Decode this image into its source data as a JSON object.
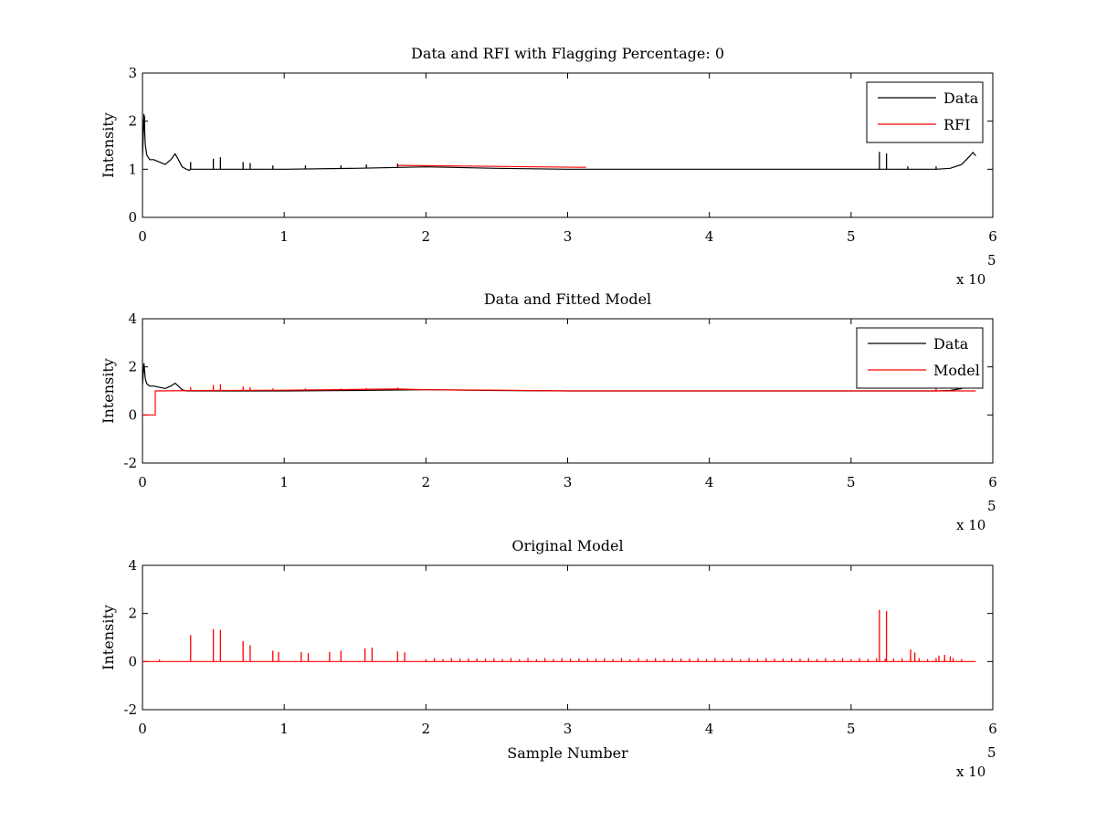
{
  "figure": {
    "background": "#ffffff"
  },
  "chart_data": [
    {
      "type": "line",
      "title": "Data and RFI with Flagging Percentage: 0",
      "xlabel": "",
      "ylabel": "Intensity",
      "xlim": [
        0,
        600000
      ],
      "ylim": [
        0,
        3
      ],
      "x_ticks": [
        0,
        100000,
        200000,
        300000,
        400000,
        500000,
        600000
      ],
      "x_tick_labels": [
        "0",
        "1",
        "2",
        "3",
        "4",
        "5",
        "6"
      ],
      "y_ticks": [
        0,
        1,
        2,
        3
      ],
      "y_tick_labels": [
        "0",
        "1",
        "2",
        "3"
      ],
      "x_multiplier": {
        "text": "x 10",
        "exponent": "5"
      },
      "grid": false,
      "legend": "top-right",
      "series": [
        {
          "name": "Data",
          "color": "#000000",
          "x": [
            0,
            1000,
            2000,
            3000,
            5000,
            8000,
            12000,
            16000,
            20000,
            23000,
            25000,
            28000,
            31000,
            33000,
            34000,
            36000,
            40000,
            50000,
            60000,
            80000,
            100000,
            150000,
            200000,
            250000,
            300000,
            350000,
            400000,
            450000,
            500000,
            540000,
            560000,
            570000,
            578000,
            583000,
            586000,
            588000
          ],
          "y": [
            1.25,
            2.15,
            1.5,
            1.3,
            1.2,
            1.2,
            1.15,
            1.1,
            1.2,
            1.32,
            1.22,
            1.05,
            1.0,
            0.98,
            1.0,
            1.0,
            1.0,
            1.0,
            1.0,
            1.0,
            1.0,
            1.02,
            1.05,
            1.02,
            1.0,
            1.0,
            1.0,
            1.0,
            1.0,
            1.0,
            1.0,
            1.02,
            1.1,
            1.25,
            1.35,
            1.28
          ],
          "spikes": [
            {
              "x": 1500,
              "y": 2.1
            },
            {
              "x": 34000,
              "y": 1.15
            },
            {
              "x": 50000,
              "y": 1.22
            },
            {
              "x": 55000,
              "y": 1.25
            },
            {
              "x": 71000,
              "y": 1.15
            },
            {
              "x": 76000,
              "y": 1.13
            },
            {
              "x": 92000,
              "y": 1.08
            },
            {
              "x": 115000,
              "y": 1.08
            },
            {
              "x": 140000,
              "y": 1.08
            },
            {
              "x": 158000,
              "y": 1.1
            },
            {
              "x": 180000,
              "y": 1.12
            },
            {
              "x": 520000,
              "y": 1.36
            },
            {
              "x": 525000,
              "y": 1.33
            },
            {
              "x": 540000,
              "y": 1.06
            },
            {
              "x": 560000,
              "y": 1.06
            }
          ]
        },
        {
          "name": "RFI",
          "color": "#ff0000",
          "x": [
            180000,
            183000,
            310000,
            313000
          ],
          "y": [
            1.08,
            1.08,
            1.04,
            1.04
          ]
        }
      ]
    },
    {
      "type": "line",
      "title": "Data and Fitted Model",
      "xlabel": "",
      "ylabel": "Intensity",
      "xlim": [
        0,
        600000
      ],
      "ylim": [
        -2,
        4
      ],
      "x_ticks": [
        0,
        100000,
        200000,
        300000,
        400000,
        500000,
        600000
      ],
      "x_tick_labels": [
        "0",
        "1",
        "2",
        "3",
        "4",
        "5",
        "6"
      ],
      "y_ticks": [
        -2,
        0,
        2,
        4
      ],
      "y_tick_labels": [
        "-2",
        "0",
        "2",
        "4"
      ],
      "x_multiplier": {
        "text": "x 10",
        "exponent": "5"
      },
      "grid": false,
      "legend": "top-right",
      "series": [
        {
          "name": "Data",
          "color": "#000000",
          "x": [
            0,
            1000,
            2000,
            3000,
            5000,
            8000,
            12000,
            16000,
            20000,
            23000,
            25000,
            28000,
            31000,
            34000,
            40000,
            60000,
            100000,
            150000,
            200000,
            250000,
            300000,
            350000,
            400000,
            450000,
            500000,
            540000,
            560000,
            570000,
            578000,
            583000,
            586000,
            588000
          ],
          "y": [
            1.25,
            2.15,
            1.5,
            1.3,
            1.2,
            1.2,
            1.15,
            1.1,
            1.2,
            1.32,
            1.22,
            1.05,
            1.0,
            1.0,
            1.0,
            1.0,
            1.0,
            1.02,
            1.05,
            1.02,
            1.0,
            1.0,
            1.0,
            1.0,
            1.0,
            1.0,
            1.0,
            1.02,
            1.1,
            1.25,
            1.35,
            1.28
          ]
        },
        {
          "name": "Model",
          "color": "#ff0000",
          "x": [
            0,
            9000,
            9000,
            50000,
            100000,
            150000,
            180000,
            200000,
            250000,
            300000,
            350000,
            400000,
            450000,
            500000,
            550000,
            588000
          ],
          "y": [
            0,
            0,
            1.0,
            1.02,
            1.03,
            1.06,
            1.08,
            1.05,
            1.03,
            1.0,
            1.0,
            1.0,
            1.0,
            1.0,
            1.0,
            1.0
          ],
          "spikes": [
            {
              "x": 34000,
              "y": 1.15
            },
            {
              "x": 50000,
              "y": 1.25
            },
            {
              "x": 55000,
              "y": 1.28
            },
            {
              "x": 71000,
              "y": 1.18
            },
            {
              "x": 76000,
              "y": 1.15
            },
            {
              "x": 92000,
              "y": 1.1
            },
            {
              "x": 115000,
              "y": 1.1
            },
            {
              "x": 140000,
              "y": 1.1
            },
            {
              "x": 158000,
              "y": 1.12
            },
            {
              "x": 180000,
              "y": 1.14
            },
            {
              "x": 560000,
              "y": 1.1
            }
          ]
        }
      ]
    },
    {
      "type": "line",
      "title": "Original Model",
      "xlabel": "Sample Number",
      "ylabel": "Intensity",
      "xlim": [
        0,
        600000
      ],
      "ylim": [
        -2,
        4
      ],
      "x_ticks": [
        0,
        100000,
        200000,
        300000,
        400000,
        500000,
        600000
      ],
      "x_tick_labels": [
        "0",
        "1",
        "2",
        "3",
        "4",
        "5",
        "6"
      ],
      "y_ticks": [
        -2,
        0,
        2,
        4
      ],
      "y_tick_labels": [
        "-2",
        "0",
        "2",
        "4"
      ],
      "x_multiplier": {
        "text": "x 10",
        "exponent": "5"
      },
      "grid": false,
      "legend": "none",
      "series": [
        {
          "color": "#ff0000",
          "x": [
            0,
            588000
          ],
          "y": [
            0,
            0
          ],
          "spikes": [
            {
              "x": 12000,
              "y": 0.08
            },
            {
              "x": 34000,
              "y": 1.1
            },
            {
              "x": 50000,
              "y": 1.35
            },
            {
              "x": 55000,
              "y": 1.32
            },
            {
              "x": 71000,
              "y": 0.85
            },
            {
              "x": 76000,
              "y": 0.68
            },
            {
              "x": 92000,
              "y": 0.45
            },
            {
              "x": 96000,
              "y": 0.4
            },
            {
              "x": 112000,
              "y": 0.4
            },
            {
              "x": 117000,
              "y": 0.35
            },
            {
              "x": 132000,
              "y": 0.4
            },
            {
              "x": 140000,
              "y": 0.45
            },
            {
              "x": 157000,
              "y": 0.55
            },
            {
              "x": 162000,
              "y": 0.58
            },
            {
              "x": 180000,
              "y": 0.42
            },
            {
              "x": 185000,
              "y": 0.38
            },
            {
              "x": 520000,
              "y": 2.15
            },
            {
              "x": 525000,
              "y": 2.1
            },
            {
              "x": 542000,
              "y": 0.5
            },
            {
              "x": 545000,
              "y": 0.38
            },
            {
              "x": 562000,
              "y": 0.25
            },
            {
              "x": 566000,
              "y": 0.28
            },
            {
              "x": 570000,
              "y": 0.22
            }
          ],
          "noise_spikes": {
            "x_start": 200000,
            "x_end": 580000,
            "spacing": 6000,
            "height": 0.15
          }
        }
      ]
    }
  ]
}
